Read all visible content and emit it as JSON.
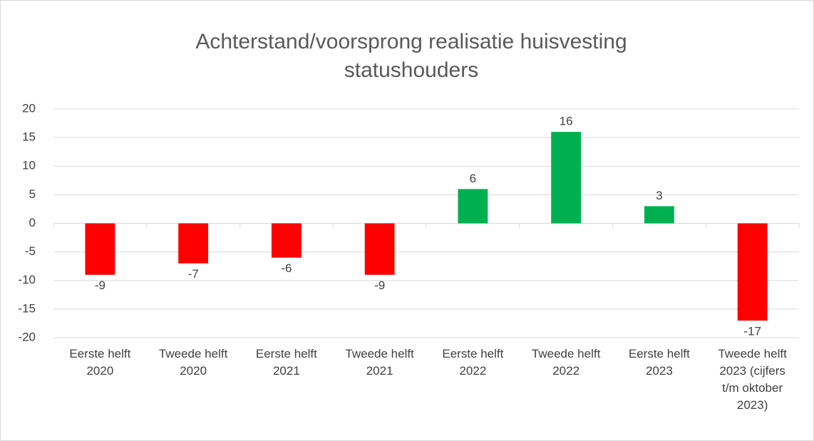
{
  "chart_data": {
    "type": "bar",
    "title": "Achterstand/voorsprong realisatie huisvesting statushouders",
    "categories": [
      "Eerste helft 2020",
      "Tweede helft 2020",
      "Eerste helft 2021",
      "Tweede helft 2021",
      "Eerste helft 2022",
      "Tweede helft 2022",
      "Eerste helft 2023",
      "Tweede helft 2023 (cijfers t/m oktober 2023)"
    ],
    "values": [
      -9,
      -7,
      -6,
      -9,
      6,
      16,
      3,
      -17
    ],
    "colors": [
      "#ff0000",
      "#ff0000",
      "#ff0000",
      "#ff0000",
      "#00b050",
      "#00b050",
      "#00b050",
      "#ff0000"
    ],
    "ylim": [
      -20,
      20
    ],
    "yticks": [
      -20,
      -15,
      -10,
      -5,
      0,
      5,
      10,
      15,
      20
    ],
    "grid": true
  }
}
